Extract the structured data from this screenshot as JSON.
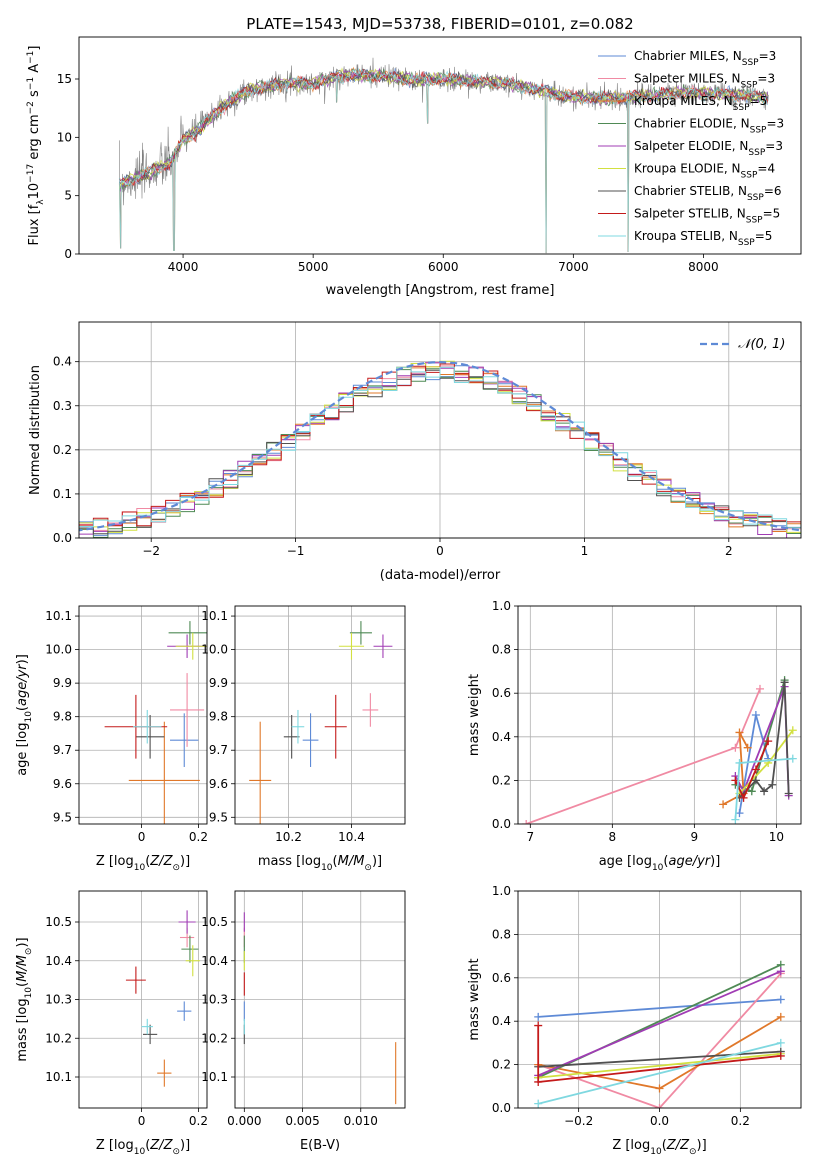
{
  "chart_data": [
    {
      "id": "spectrum",
      "type": "line",
      "title": "PLATE=1543, MJD=53738, FIBERID=0101, z=0.082",
      "xlabel": "wavelength [Angstrom, rest frame]",
      "ylabel": "Flux [fλ10⁻¹⁷ erg cm⁻² s⁻¹ A⁻¹]",
      "xlim": [
        3200,
        8750
      ],
      "ylim": [
        0,
        18.6
      ],
      "xticks": [
        4000,
        5000,
        6000,
        7000,
        8000
      ],
      "yticks": [
        0,
        5,
        10,
        15
      ],
      "grid": false,
      "legend_position": "top-right",
      "continuum": [
        [
          3510,
          6.0
        ],
        [
          3700,
          6.8
        ],
        [
          3900,
          7.8
        ],
        [
          4000,
          9.8
        ],
        [
          4100,
          10.5
        ],
        [
          4300,
          12.6
        ],
        [
          4500,
          14.0
        ],
        [
          4800,
          14.7
        ],
        [
          5000,
          14.6
        ],
        [
          5200,
          15.3
        ],
        [
          5500,
          15.3
        ],
        [
          5800,
          14.9
        ],
        [
          6000,
          15.0
        ],
        [
          6500,
          14.6
        ],
        [
          7000,
          13.4
        ],
        [
          7400,
          13.4
        ],
        [
          7800,
          13.8
        ],
        [
          8200,
          13.7
        ],
        [
          8500,
          13.4
        ]
      ],
      "dips": [
        [
          3520,
          0.5
        ],
        [
          3930,
          0.3
        ],
        [
          5180,
          13.0
        ],
        [
          5880,
          11.2
        ],
        [
          6790,
          0.1
        ],
        [
          7420,
          0.2
        ]
      ],
      "series": [
        {
          "name": "Chabrier MILES, N_SSP=3",
          "color": "#5e8ad6"
        },
        {
          "name": "Salpeter MILES, N_SSP=3",
          "color": "#f08aa3"
        },
        {
          "name": "Kroupa MILES, N_SSP=5",
          "color": "#e0782a"
        },
        {
          "name": "Chabrier ELODIE, N_SSP=3",
          "color": "#4f8a55"
        },
        {
          "name": "Salpeter ELODIE, N_SSP=3",
          "color": "#a03cb4"
        },
        {
          "name": "Kroupa ELODIE, N_SSP=4",
          "color": "#d2e040"
        },
        {
          "name": "Chabrier STELIB, N_SSP=6",
          "color": "#505050"
        },
        {
          "name": "Salpeter STELIB, N_SSP=5",
          "color": "#c41a1a"
        },
        {
          "name": "Kroupa STELIB, N_SSP=5",
          "color": "#7fd8e0"
        }
      ]
    },
    {
      "id": "residuals",
      "type": "line",
      "xlabel": "(data-model)/error",
      "ylabel": "Normed distribution",
      "xlim": [
        -2.5,
        2.5
      ],
      "ylim": [
        0,
        0.49
      ],
      "xticks": [
        -2,
        -1,
        0,
        1,
        2
      ],
      "xtick_labels": [
        "−2",
        "−1",
        "0",
        "1",
        "2"
      ],
      "yticks": [
        0.0,
        0.1,
        0.2,
        0.3,
        0.4
      ],
      "grid": true,
      "legend_position": "top-right",
      "reference": {
        "name": "𝒩(0, 1)",
        "color": "#5e8ad6",
        "mean": 0,
        "sigma": 1
      }
    },
    {
      "id": "age_vs_Z",
      "type": "scatter",
      "xlabel": "Z [log₁₀(Z/Z⊙)]",
      "ylabel": "age  [log₁₀(age/yr)]",
      "xlim": [
        -0.22,
        0.23
      ],
      "ylim": [
        9.48,
        10.13
      ],
      "xticks": [
        0.0,
        0.2
      ],
      "yticks": [
        9.5,
        9.6,
        9.7,
        9.8,
        9.9,
        10.0,
        10.1
      ],
      "grid": true,
      "points": [
        {
          "color": "#5e8ad6",
          "x": 0.15,
          "y": 9.73,
          "xerr": 0.1,
          "yerr": 0.16
        },
        {
          "color": "#f08aa3",
          "x": 0.16,
          "y": 9.82,
          "xerr": 0.12,
          "yerr": 0.22
        },
        {
          "color": "#e0782a",
          "x": 0.08,
          "y": 9.61,
          "xerr": 0.25,
          "yerr": 0.35
        },
        {
          "color": "#4f8a55",
          "x": 0.17,
          "y": 10.05,
          "xerr": 0.15,
          "yerr": 0.07
        },
        {
          "color": "#a03cb4",
          "x": 0.16,
          "y": 10.01,
          "xerr": 0.14,
          "yerr": 0.07
        },
        {
          "color": "#d2e040",
          "x": 0.18,
          "y": 10.01,
          "xerr": 0.12,
          "yerr": 0.08
        },
        {
          "color": "#505050",
          "x": 0.03,
          "y": 9.74,
          "xerr": 0.1,
          "yerr": 0.13
        },
        {
          "color": "#c41a1a",
          "x": -0.02,
          "y": 9.77,
          "xerr": 0.22,
          "yerr": 0.19
        },
        {
          "color": "#7fd8e0",
          "x": 0.02,
          "y": 9.77,
          "xerr": 0.1,
          "yerr": 0.1
        }
      ]
    },
    {
      "id": "age_vs_mass",
      "type": "scatter",
      "xlabel": "mass [log₁₀(M/M⊙)]",
      "ylabel": "",
      "xlim": [
        10.03,
        10.57
      ],
      "ylim": [
        9.48,
        10.13
      ],
      "xticks": [
        10.2,
        10.4
      ],
      "yticks": [
        9.5,
        9.6,
        9.7,
        9.8,
        9.9,
        10.0,
        10.1
      ],
      "grid": true,
      "points": [
        {
          "color": "#5e8ad6",
          "x": 10.27,
          "y": 9.73,
          "xerr": 0.05,
          "yerr": 0.16
        },
        {
          "color": "#f08aa3",
          "x": 10.46,
          "y": 9.82,
          "xerr": 0.05,
          "yerr": 0.1
        },
        {
          "color": "#e0782a",
          "x": 10.11,
          "y": 9.61,
          "xerr": 0.07,
          "yerr": 0.35
        },
        {
          "color": "#4f8a55",
          "x": 10.43,
          "y": 10.05,
          "xerr": 0.07,
          "yerr": 0.07
        },
        {
          "color": "#a03cb4",
          "x": 10.5,
          "y": 10.01,
          "xerr": 0.06,
          "yerr": 0.07
        },
        {
          "color": "#d2e040",
          "x": 10.4,
          "y": 10.01,
          "xerr": 0.08,
          "yerr": 0.08
        },
        {
          "color": "#505050",
          "x": 10.21,
          "y": 9.74,
          "xerr": 0.05,
          "yerr": 0.13
        },
        {
          "color": "#c41a1a",
          "x": 10.35,
          "y": 9.77,
          "xerr": 0.07,
          "yerr": 0.19
        },
        {
          "color": "#7fd8e0",
          "x": 10.23,
          "y": 9.77,
          "xerr": 0.04,
          "yerr": 0.1
        }
      ]
    },
    {
      "id": "weight_vs_age",
      "type": "line",
      "xlabel": "age  [log₁₀(age/yr)]",
      "ylabel": "mass weight",
      "xlim": [
        6.85,
        10.3
      ],
      "ylim": [
        0,
        1
      ],
      "xticks": [
        7,
        8,
        9,
        10
      ],
      "yticks": [
        0.0,
        0.2,
        0.4,
        0.6,
        0.8,
        1.0
      ],
      "grid": true,
      "series": [
        {
          "color": "#5e8ad6",
          "points": [
            [
              9.55,
              0.05
            ],
            [
              9.75,
              0.5
            ],
            [
              9.9,
              0.3
            ]
          ]
        },
        {
          "color": "#f08aa3",
          "points": [
            [
              6.95,
              0.0
            ],
            [
              9.5,
              0.35
            ],
            [
              9.8,
              0.62
            ]
          ]
        },
        {
          "color": "#e0782a",
          "points": [
            [
              9.35,
              0.09
            ],
            [
              9.6,
              0.14
            ],
            [
              9.55,
              0.42
            ],
            [
              9.65,
              0.35
            ]
          ]
        },
        {
          "color": "#4f8a55",
          "points": [
            [
              9.5,
              0.18
            ],
            [
              9.7,
              0.15
            ],
            [
              10.1,
              0.66
            ]
          ]
        },
        {
          "color": "#a03cb4",
          "points": [
            [
              9.5,
              0.22
            ],
            [
              9.6,
              0.15
            ],
            [
              10.1,
              0.63
            ],
            [
              10.15,
              0.13
            ]
          ]
        },
        {
          "color": "#d2e040",
          "points": [
            [
              9.55,
              0.14
            ],
            [
              9.9,
              0.28
            ],
            [
              10.2,
              0.43
            ]
          ]
        },
        {
          "color": "#505050",
          "points": [
            [
              9.55,
              0.12
            ],
            [
              9.75,
              0.2
            ],
            [
              9.85,
              0.15
            ],
            [
              9.95,
              0.18
            ],
            [
              10.1,
              0.65
            ],
            [
              10.15,
              0.14
            ]
          ]
        },
        {
          "color": "#c41a1a",
          "points": [
            [
              9.5,
              0.2
            ],
            [
              9.6,
              0.12
            ],
            [
              9.75,
              0.25
            ],
            [
              9.9,
              0.38
            ]
          ]
        },
        {
          "color": "#7fd8e0",
          "points": [
            [
              9.5,
              0.02
            ],
            [
              9.55,
              0.28
            ],
            [
              10.2,
              0.3
            ]
          ]
        }
      ]
    },
    {
      "id": "mass_vs_Z",
      "type": "scatter",
      "xlabel": "Z [log₁₀(Z/Z⊙)]",
      "ylabel": "mass [log₁₀(M/M⊙)]",
      "xlim": [
        -0.22,
        0.23
      ],
      "ylim": [
        10.02,
        10.58
      ],
      "xticks": [
        0.0,
        0.2
      ],
      "yticks": [
        10.1,
        10.2,
        10.3,
        10.4,
        10.5
      ],
      "grid": true,
      "points": [
        {
          "color": "#5e8ad6",
          "x": 0.15,
          "y": 10.27,
          "xerr": 0.05,
          "yerr": 0.05
        },
        {
          "color": "#f08aa3",
          "x": 0.16,
          "y": 10.46,
          "xerr": 0.05,
          "yerr": 0.05
        },
        {
          "color": "#e0782a",
          "x": 0.08,
          "y": 10.11,
          "xerr": 0.05,
          "yerr": 0.07
        },
        {
          "color": "#4f8a55",
          "x": 0.17,
          "y": 10.43,
          "xerr": 0.06,
          "yerr": 0.07
        },
        {
          "color": "#a03cb4",
          "x": 0.16,
          "y": 10.5,
          "xerr": 0.06,
          "yerr": 0.06
        },
        {
          "color": "#d2e040",
          "x": 0.18,
          "y": 10.4,
          "xerr": 0.05,
          "yerr": 0.08
        },
        {
          "color": "#505050",
          "x": 0.03,
          "y": 10.21,
          "xerr": 0.05,
          "yerr": 0.05
        },
        {
          "color": "#c41a1a",
          "x": -0.02,
          "y": 10.35,
          "xerr": 0.07,
          "yerr": 0.07
        },
        {
          "color": "#7fd8e0",
          "x": 0.02,
          "y": 10.23,
          "xerr": 0.04,
          "yerr": 0.04
        }
      ]
    },
    {
      "id": "mass_vs_ebv",
      "type": "scatter",
      "xlabel": "E(B-V)",
      "ylabel": "",
      "xlim": [
        -0.0008,
        0.0138
      ],
      "ylim": [
        10.02,
        10.58
      ],
      "xticks": [
        0.0,
        0.005,
        0.01
      ],
      "xtick_labels": [
        "0.000",
        "0.005",
        "0.010"
      ],
      "yticks": [
        10.1,
        10.2,
        10.3,
        10.4,
        10.5
      ],
      "grid": true,
      "points": [
        {
          "color": "#5e8ad6",
          "x": 0.0,
          "y": 10.27,
          "yerr": 0.05
        },
        {
          "color": "#f08aa3",
          "x": 0.0,
          "y": 10.46,
          "yerr": 0.05
        },
        {
          "color": "#e0782a",
          "x": 0.013,
          "y": 10.11,
          "yerr": 0.16
        },
        {
          "color": "#4f8a55",
          "x": 0.0,
          "y": 10.43,
          "yerr": 0.07
        },
        {
          "color": "#a03cb4",
          "x": 0.0,
          "y": 10.5,
          "yerr": 0.05
        },
        {
          "color": "#d2e040",
          "x": 0.0,
          "y": 10.4,
          "yerr": 0.05
        },
        {
          "color": "#505050",
          "x": 0.0,
          "y": 10.21,
          "yerr": 0.05
        },
        {
          "color": "#c41a1a",
          "x": 0.0,
          "y": 10.34,
          "yerr": 0.06
        },
        {
          "color": "#7fd8e0",
          "x": 0.0,
          "y": 10.23,
          "yerr": 0.04
        }
      ]
    },
    {
      "id": "weight_vs_Z",
      "type": "line",
      "xlabel": "Z [log₁₀(Z/Z⊙)]",
      "ylabel": "mass weight",
      "xlim": [
        -0.35,
        0.35
      ],
      "ylim": [
        0,
        1
      ],
      "xticks": [
        -0.2,
        0.0,
        0.2
      ],
      "xtick_labels": [
        "−0.2",
        "0.0",
        "0.2"
      ],
      "yticks": [
        0.0,
        0.2,
        0.4,
        0.6,
        0.8,
        1.0
      ],
      "grid": true,
      "series": [
        {
          "color": "#5e8ad6",
          "points": [
            [
              -0.3,
              0.42
            ],
            [
              0.3,
              0.5
            ]
          ]
        },
        {
          "color": "#f08aa3",
          "points": [
            [
              -0.3,
              0.2
            ],
            [
              0.0,
              0.0
            ],
            [
              0.3,
              0.62
            ]
          ]
        },
        {
          "color": "#e0782a",
          "points": [
            [
              -0.3,
              0.2
            ],
            [
              0.0,
              0.09
            ],
            [
              0.3,
              0.42
            ]
          ]
        },
        {
          "color": "#4f8a55",
          "points": [
            [
              -0.3,
              0.14
            ],
            [
              0.3,
              0.66
            ]
          ]
        },
        {
          "color": "#a03cb4",
          "points": [
            [
              -0.3,
              0.15
            ],
            [
              0.3,
              0.63
            ]
          ]
        },
        {
          "color": "#d2e040",
          "points": [
            [
              -0.3,
              0.14
            ],
            [
              0.3,
              0.25
            ]
          ]
        },
        {
          "color": "#505050",
          "points": [
            [
              -0.3,
              0.19
            ],
            [
              0.3,
              0.26
            ]
          ]
        },
        {
          "color": "#c41a1a",
          "points": [
            [
              -0.3,
              0.38
            ],
            [
              -0.3,
              0.12
            ],
            [
              0.3,
              0.24
            ]
          ]
        },
        {
          "color": "#7fd8e0",
          "points": [
            [
              -0.3,
              0.02
            ],
            [
              0.3,
              0.3
            ]
          ]
        }
      ]
    }
  ]
}
